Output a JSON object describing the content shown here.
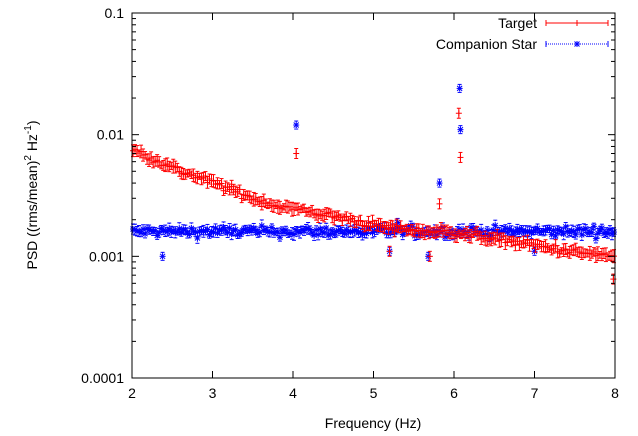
{
  "chart_data": {
    "type": "scatter",
    "xlabel": "Frequency (Hz)",
    "ylabel": "PSD ((rms/mean)2 Hz-1)",
    "ylabel_parts": {
      "base": "PSD ((rms/mean)",
      "sup1": "2",
      "mid": " Hz",
      "sup2": "-1",
      "end": ")"
    },
    "xlim": [
      2,
      8
    ],
    "ylim": [
      0.0001,
      0.1
    ],
    "y_scale": "log",
    "grid": false,
    "legend_position": "top-right",
    "x_ticks": [
      2,
      3,
      4,
      5,
      6,
      7,
      8
    ],
    "x_tick_labels": [
      "2",
      "3",
      "4",
      "5",
      "6",
      "7",
      "8"
    ],
    "y_ticks": [
      0.0001,
      0.001,
      0.01,
      0.1
    ],
    "y_tick_labels": [
      "0.0001",
      "0.001",
      "0.01",
      "0.1"
    ],
    "series": [
      {
        "name": "Target",
        "color": "#ff0000",
        "marker": "plus",
        "anchors": [
          [
            2.0,
            0.0075
          ],
          [
            2.3,
            0.0062
          ],
          [
            2.6,
            0.005
          ],
          [
            2.9,
            0.0043
          ],
          [
            3.2,
            0.0036
          ],
          [
            3.5,
            0.003
          ],
          [
            3.8,
            0.0026
          ],
          [
            4.1,
            0.0024
          ],
          [
            4.4,
            0.0022
          ],
          [
            4.7,
            0.002
          ],
          [
            5.0,
            0.0018
          ],
          [
            5.3,
            0.0017
          ],
          [
            5.6,
            0.0016
          ],
          [
            5.9,
            0.0016
          ],
          [
            6.2,
            0.0015
          ],
          [
            6.5,
            0.0014
          ],
          [
            6.8,
            0.0013
          ],
          [
            7.1,
            0.0012
          ],
          [
            7.4,
            0.0011
          ],
          [
            7.7,
            0.00105
          ],
          [
            8.0,
            0.001
          ]
        ],
        "peaks": [
          [
            4.04,
            0.007
          ],
          [
            5.82,
            0.0027
          ],
          [
            6.06,
            0.015
          ],
          [
            6.08,
            0.0065
          ]
        ],
        "low_points": [
          [
            7.98,
            0.00065
          ],
          [
            5.2,
            0.0011
          ],
          [
            5.7,
            0.001
          ]
        ]
      },
      {
        "name": "Companion Star",
        "color": "#0000ff",
        "marker": "star",
        "baseline": 0.0016,
        "peaks": [
          [
            4.04,
            0.012
          ],
          [
            5.82,
            0.004
          ],
          [
            6.07,
            0.024
          ],
          [
            6.08,
            0.011
          ],
          [
            5.3,
            0.0019
          ]
        ],
        "low_points": [
          [
            2.38,
            0.001
          ],
          [
            5.2,
            0.0011
          ],
          [
            5.68,
            0.001
          ],
          [
            7.0,
            0.0011
          ]
        ]
      }
    ]
  }
}
